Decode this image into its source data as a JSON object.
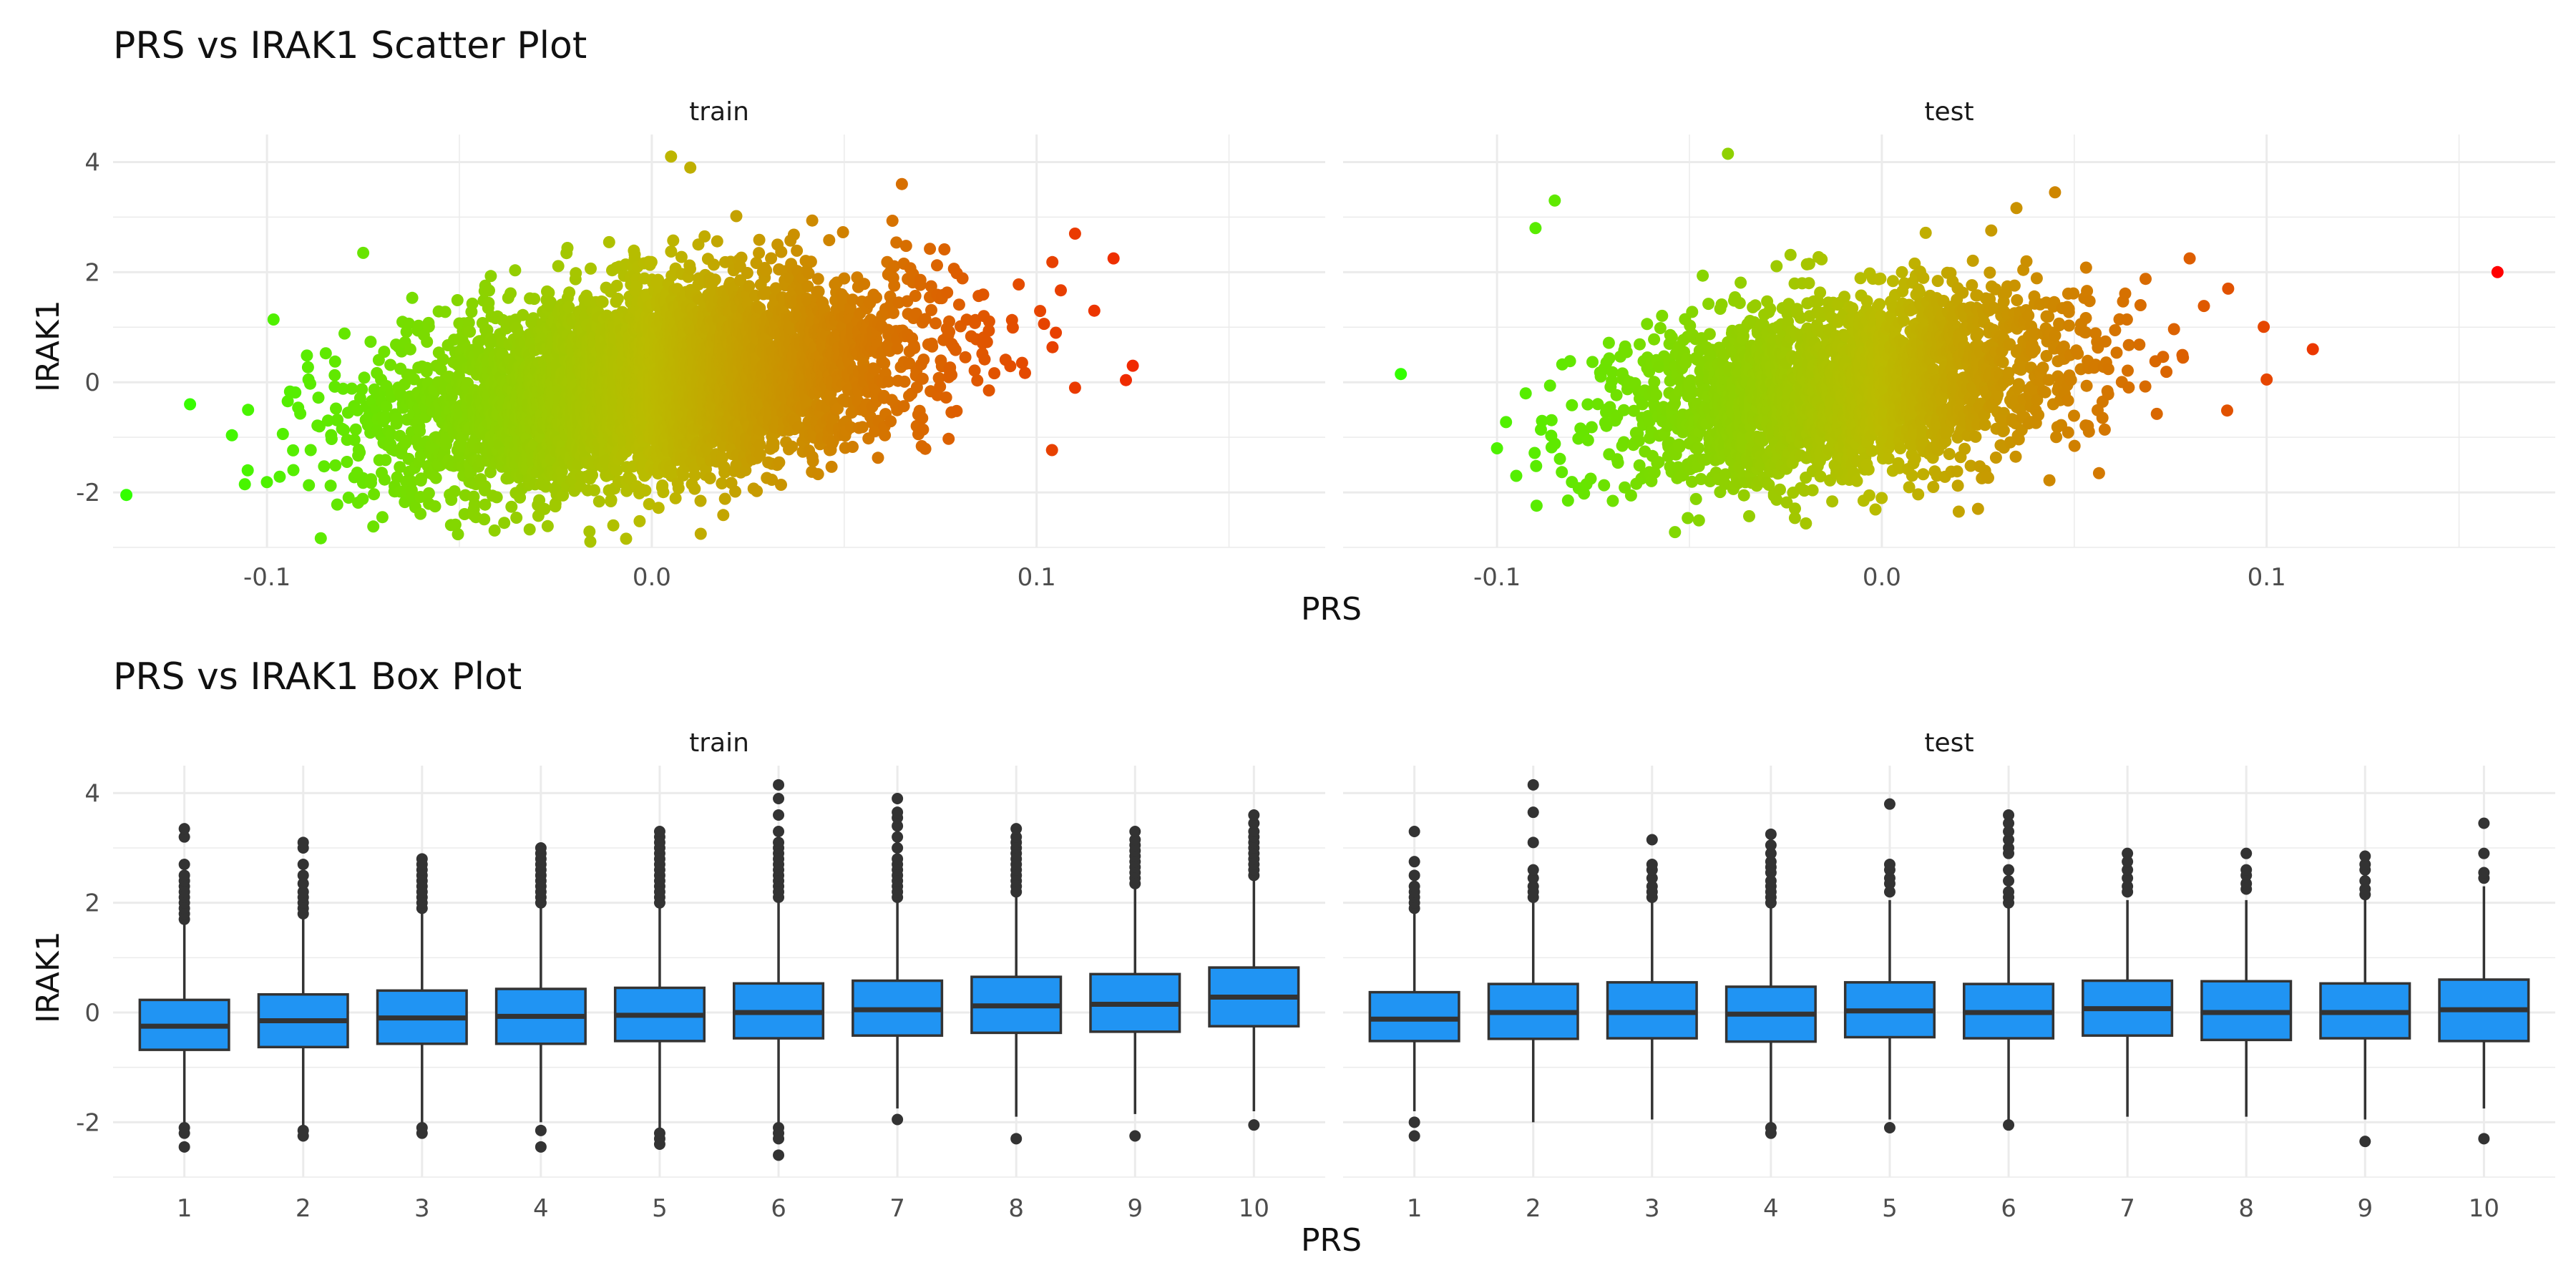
{
  "titles": {
    "scatter": "PRS vs IRAK1 Scatter Plot",
    "box": "PRS vs IRAK1 Box Plot"
  },
  "axes": {
    "scatter_x": "PRS",
    "scatter_y": "IRAK1",
    "box_x": "PRS",
    "box_y": "IRAK1"
  },
  "colors": {
    "gradient_low": "#33ff00",
    "gradient_mid": "#bbbb00",
    "gradient_high": "#ff0000",
    "box_fill": "#2094f3",
    "box_line": "#333333",
    "grid": "#ebebeb"
  },
  "chart_data": [
    {
      "type": "scatter",
      "title": "PRS vs IRAK1 Scatter Plot",
      "xlabel": "PRS",
      "ylabel": "IRAK1",
      "panels": [
        "train",
        "test"
      ],
      "xlim": [
        -0.14,
        0.175
      ],
      "ylim": [
        -3,
        4.5
      ],
      "xticks": [
        -0.1,
        0.0,
        0.1
      ],
      "xtick_labels": [
        "-0.1",
        "0.0",
        "0.1"
      ],
      "yticks": [
        -2,
        0,
        2,
        4
      ],
      "ytick_labels": [
        "-2",
        "0",
        "2",
        "4"
      ],
      "grid": true,
      "color_by": "PRS",
      "series": [
        {
          "name": "train",
          "distribution": {
            "x_mean": 0.0,
            "x_sd": 0.033,
            "y_mean": 0.0,
            "y_sd": 0.9,
            "n": 5000
          },
          "extreme_points": [
            [
              0.125,
              0.3
            ],
            [
              -0.12,
              -0.4
            ],
            [
              0.11,
              2.7
            ],
            [
              0.12,
              2.25
            ],
            [
              0.005,
              4.1
            ],
            [
              0.01,
              3.9
            ],
            [
              -0.07,
              -2.45
            ],
            [
              -0.01,
              -2.6
            ],
            [
              0.065,
              3.6
            ],
            [
              -0.075,
              2.35
            ],
            [
              0.115,
              1.3
            ],
            [
              -0.105,
              -1.6
            ],
            [
              0.105,
              0.9
            ],
            [
              0.11,
              -0.1
            ]
          ]
        },
        {
          "name": "test",
          "distribution": {
            "x_mean": -0.01,
            "x_sd": 0.03,
            "y_mean": -0.1,
            "y_sd": 0.85,
            "n": 2500
          },
          "extreme_points": [
            [
              0.16,
              2.0
            ],
            [
              -0.125,
              0.15
            ],
            [
              0.112,
              0.6
            ],
            [
              0.1,
              0.05
            ],
            [
              -0.04,
              4.15
            ],
            [
              -0.085,
              3.3
            ],
            [
              -0.1,
              -1.2
            ],
            [
              -0.095,
              -1.7
            ],
            [
              0.045,
              3.45
            ],
            [
              0.09,
              1.7
            ],
            [
              0.08,
              2.25
            ],
            [
              0.02,
              -2.35
            ],
            [
              0.025,
              -2.3
            ],
            [
              -0.09,
              2.8
            ]
          ]
        }
      ]
    },
    {
      "type": "box",
      "title": "PRS vs IRAK1 Box Plot",
      "xlabel": "PRS",
      "ylabel": "IRAK1",
      "panels": [
        "train",
        "test"
      ],
      "categories": [
        "1",
        "2",
        "3",
        "4",
        "5",
        "6",
        "7",
        "8",
        "9",
        "10"
      ],
      "ylim": [
        -3,
        4.5
      ],
      "yticks": [
        -2,
        0,
        2,
        4
      ],
      "ytick_labels": [
        "-2",
        "0",
        "2",
        "4"
      ],
      "grid": true,
      "series": [
        {
          "name": "train",
          "boxes": [
            {
              "q1": -0.68,
              "med": -0.25,
              "q3": 0.23,
              "lo": -2.0,
              "hi": 1.6,
              "outliers_hi": [
                1.7,
                1.8,
                1.9,
                2.0,
                2.1,
                2.2,
                2.3,
                2.4,
                2.5,
                2.7,
                3.2,
                3.35
              ],
              "outliers_lo": [
                -2.1,
                -2.2,
                -2.45
              ]
            },
            {
              "q1": -0.63,
              "med": -0.15,
              "q3": 0.33,
              "lo": -2.1,
              "hi": 1.75,
              "outliers_hi": [
                1.8,
                1.9,
                2.0,
                2.1,
                2.2,
                2.35,
                2.5,
                2.7,
                3.0,
                3.1
              ],
              "outliers_lo": [
                -2.15,
                -2.25
              ]
            },
            {
              "q1": -0.57,
              "med": -0.1,
              "q3": 0.4,
              "lo": -2.0,
              "hi": 1.85,
              "outliers_hi": [
                1.9,
                2.0,
                2.1,
                2.2,
                2.3,
                2.4,
                2.5,
                2.6,
                2.7,
                2.8
              ],
              "outliers_lo": [
                -2.1,
                -2.2
              ]
            },
            {
              "q1": -0.57,
              "med": -0.07,
              "q3": 0.43,
              "lo": -2.0,
              "hi": 1.9,
              "outliers_hi": [
                2.0,
                2.1,
                2.2,
                2.3,
                2.4,
                2.5,
                2.6,
                2.7,
                2.8,
                2.9,
                3.0
              ],
              "outliers_lo": [
                -2.15,
                -2.45
              ]
            },
            {
              "q1": -0.52,
              "med": -0.05,
              "q3": 0.45,
              "lo": -2.1,
              "hi": 1.95,
              "outliers_hi": [
                2.0,
                2.1,
                2.2,
                2.3,
                2.4,
                2.5,
                2.6,
                2.7,
                2.8,
                2.9,
                3.0,
                3.1,
                3.2,
                3.3
              ],
              "outliers_lo": [
                -2.2,
                -2.3,
                -2.4
              ]
            },
            {
              "q1": -0.47,
              "med": 0.0,
              "q3": 0.53,
              "lo": -2.0,
              "hi": 2.0,
              "outliers_hi": [
                2.1,
                2.2,
                2.3,
                2.4,
                2.5,
                2.6,
                2.7,
                2.8,
                2.9,
                3.0,
                3.1,
                3.3,
                3.6,
                3.9,
                4.15
              ],
              "outliers_lo": [
                -2.1,
                -2.2,
                -2.3,
                -2.6
              ]
            },
            {
              "q1": -0.42,
              "med": 0.05,
              "q3": 0.58,
              "lo": -1.75,
              "hi": 2.05,
              "outliers_hi": [
                2.1,
                2.2,
                2.3,
                2.4,
                2.5,
                2.6,
                2.7,
                2.8,
                3.0,
                3.2,
                3.4,
                3.55,
                3.65,
                3.9
              ],
              "outliers_lo": [
                -1.95
              ]
            },
            {
              "q1": -0.37,
              "med": 0.12,
              "q3": 0.65,
              "lo": -1.9,
              "hi": 2.1,
              "outliers_hi": [
                2.2,
                2.3,
                2.4,
                2.5,
                2.6,
                2.7,
                2.8,
                2.9,
                3.0,
                3.1,
                3.2,
                3.35
              ],
              "outliers_lo": [
                -2.3
              ]
            },
            {
              "q1": -0.35,
              "med": 0.15,
              "q3": 0.7,
              "lo": -1.85,
              "hi": 2.25,
              "outliers_hi": [
                2.35,
                2.45,
                2.55,
                2.65,
                2.75,
                2.85,
                2.95,
                3.05,
                3.15,
                3.3
              ],
              "outliers_lo": [
                -2.25
              ]
            },
            {
              "q1": -0.25,
              "med": 0.28,
              "q3": 0.82,
              "lo": -1.8,
              "hi": 2.4,
              "outliers_hi": [
                2.5,
                2.6,
                2.7,
                2.8,
                2.9,
                3.0,
                3.1,
                3.2,
                3.3,
                3.45,
                3.6
              ],
              "outliers_lo": [
                -2.05
              ]
            }
          ]
        },
        {
          "name": "test",
          "boxes": [
            {
              "q1": -0.52,
              "med": -0.12,
              "q3": 0.37,
              "lo": -1.8,
              "hi": 1.8,
              "outliers_hi": [
                1.9,
                2.0,
                2.1,
                2.2,
                2.3,
                2.5,
                2.75,
                3.3
              ],
              "outliers_lo": [
                -2.0,
                -2.25
              ]
            },
            {
              "q1": -0.48,
              "med": 0.0,
              "q3": 0.52,
              "lo": -2.0,
              "hi": 2.0,
              "outliers_hi": [
                2.1,
                2.2,
                2.3,
                2.45,
                2.6,
                3.1,
                3.65,
                4.15
              ],
              "outliers_lo": []
            },
            {
              "q1": -0.47,
              "med": 0.0,
              "q3": 0.55,
              "lo": -1.95,
              "hi": 2.05,
              "outliers_hi": [
                2.1,
                2.2,
                2.3,
                2.45,
                2.6,
                2.7,
                3.15
              ],
              "outliers_lo": []
            },
            {
              "q1": -0.53,
              "med": -0.03,
              "q3": 0.47,
              "lo": -2.0,
              "hi": 1.95,
              "outliers_hi": [
                2.0,
                2.1,
                2.2,
                2.3,
                2.4,
                2.55,
                2.65,
                2.75,
                2.9,
                3.05,
                3.25
              ],
              "outliers_lo": [
                -2.1,
                -2.2
              ]
            },
            {
              "q1": -0.45,
              "med": 0.03,
              "q3": 0.55,
              "lo": -1.95,
              "hi": 2.05,
              "outliers_hi": [
                2.2,
                2.35,
                2.45,
                2.6,
                2.7,
                3.8
              ],
              "outliers_lo": [
                -2.1
              ]
            },
            {
              "q1": -0.47,
              "med": 0.0,
              "q3": 0.52,
              "lo": -1.95,
              "hi": 1.95,
              "outliers_hi": [
                2.0,
                2.1,
                2.2,
                2.4,
                2.6,
                2.9,
                3.0,
                3.15,
                3.3,
                3.45,
                3.6
              ],
              "outliers_lo": [
                -2.05
              ]
            },
            {
              "q1": -0.42,
              "med": 0.07,
              "q3": 0.58,
              "lo": -1.9,
              "hi": 2.05,
              "outliers_hi": [
                2.2,
                2.3,
                2.45,
                2.6,
                2.75,
                2.9
              ],
              "outliers_lo": []
            },
            {
              "q1": -0.5,
              "med": 0.0,
              "q3": 0.57,
              "lo": -1.9,
              "hi": 2.05,
              "outliers_hi": [
                2.25,
                2.35,
                2.5,
                2.6,
                2.9
              ],
              "outliers_lo": []
            },
            {
              "q1": -0.47,
              "med": 0.0,
              "q3": 0.53,
              "lo": -1.95,
              "hi": 2.05,
              "outliers_hi": [
                2.15,
                2.25,
                2.4,
                2.6,
                2.7,
                2.85
              ],
              "outliers_lo": [
                -2.35
              ]
            },
            {
              "q1": -0.52,
              "med": 0.05,
              "q3": 0.6,
              "lo": -1.75,
              "hi": 2.3,
              "outliers_hi": [
                2.45,
                2.55,
                2.9,
                3.45
              ],
              "outliers_lo": [
                -2.3
              ]
            }
          ]
        }
      ]
    }
  ]
}
